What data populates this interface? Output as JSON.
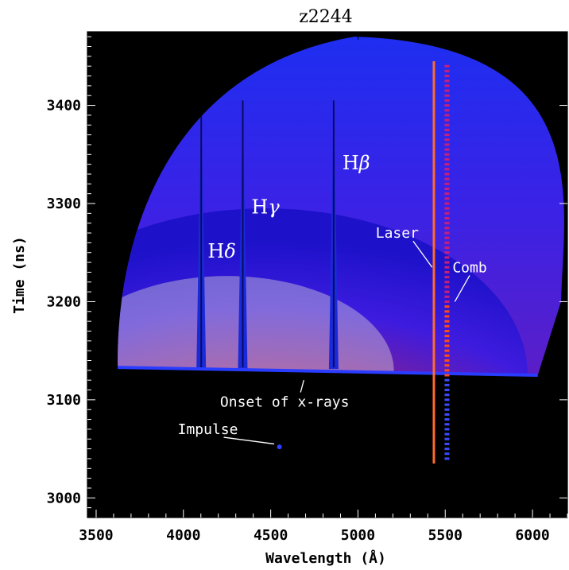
{
  "chart_data": {
    "type": "heatmap",
    "title": "z2244",
    "xlabel": "Wavelength (Å)",
    "ylabel": "Time (ns)",
    "xlim": [
      3450,
      6200
    ],
    "ylim": [
      2980,
      3475
    ],
    "xticks": [
      3500,
      4000,
      4500,
      5000,
      5500,
      6000
    ],
    "yticks": [
      3000,
      3100,
      3200,
      3300,
      3400
    ],
    "colormap": [
      "#000000",
      "#1a10c8",
      "#3c1be0",
      "#7a1f9a",
      "#c81e1e",
      "#ff5a00",
      "#f0e060",
      "#ffffe0"
    ],
    "emission_lines": [
      {
        "label": "Hδ",
        "wavelength": 4102
      },
      {
        "label": "Hγ",
        "wavelength": 4340
      },
      {
        "label": "Hβ",
        "wavelength": 4861
      }
    ],
    "line_labels": [
      {
        "key": "hdelta",
        "base": "H",
        "greek": "δ",
        "x": 4220,
        "y": 3245
      },
      {
        "key": "hgamma",
        "base": "H",
        "greek": "γ",
        "x": 4470,
        "y": 3290
      },
      {
        "key": "hbeta",
        "base": "H",
        "greek": "β",
        "x": 4990,
        "y": 3335
      }
    ],
    "annotations": [
      {
        "key": "laser",
        "text": "Laser",
        "x": 5225,
        "y": 3265,
        "target": [
          5425,
          3235
        ]
      },
      {
        "key": "comb",
        "text": "Comb",
        "x": 5640,
        "y": 3230,
        "target": [
          5555,
          3200
        ]
      },
      {
        "key": "onset",
        "text": "Onset of x-rays",
        "x": 4580,
        "y": 3093,
        "target": [
          4690,
          3120
        ]
      },
      {
        "key": "impulse",
        "text": "Impulse",
        "x": 4140,
        "y": 3065,
        "target": [
          4520,
          3055
        ]
      }
    ],
    "laser": {
      "wavelength": 5435,
      "t_start": 3035,
      "t_end": 3445
    },
    "comb": {
      "wavelength": 5510,
      "t_start": 3040,
      "t_end": 3440
    },
    "x_ray_onset": {
      "w_start": 3660,
      "t_start": 3133,
      "w_end": 6030,
      "t_end": 3125
    },
    "impulse_point": {
      "wavelength": 4550,
      "time": 3052
    }
  }
}
